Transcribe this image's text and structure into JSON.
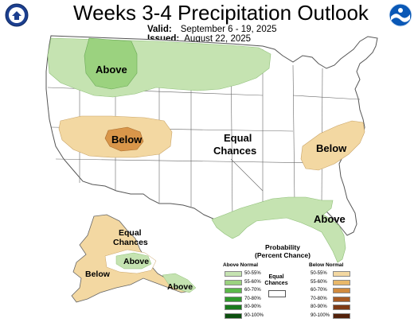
{
  "header": {
    "title": "Weeks 3-4 Precipitation Outlook",
    "valid_label": "Valid:",
    "valid_value": "September 6 - 19, 2025",
    "issued_label": "Issued:",
    "issued_value": "August 22, 2025"
  },
  "map": {
    "labels": {
      "above_northwest": "Above",
      "below_west": "Below",
      "equal_chances_line1": "Equal",
      "equal_chances_line2": "Chances",
      "below_east": "Below",
      "above_gulf": "Above",
      "alaska_equal_line1": "Equal",
      "alaska_equal_line2": "Chances",
      "alaska_above": "Above",
      "alaska_below": "Below",
      "alaska_above_southeast": "Above"
    }
  },
  "legend": {
    "title_line1": "Probability",
    "title_line2": "(Percent Chance)",
    "above_header": "Above Normal",
    "below_header": "Below Normal",
    "equal_line1": "Equal",
    "equal_line2": "Chances",
    "above_bins": [
      {
        "label": "50-55%",
        "color": "#c5e3b1"
      },
      {
        "label": "55-60%",
        "color": "#9bd27f"
      },
      {
        "label": "60-70%",
        "color": "#5bb84a"
      },
      {
        "label": "70-80%",
        "color": "#2f9a2c"
      },
      {
        "label": "80-90%",
        "color": "#197a1c"
      },
      {
        "label": "90-100%",
        "color": "#0c4f0f"
      }
    ],
    "below_bins": [
      {
        "label": "50-55%",
        "color": "#f3d8a2"
      },
      {
        "label": "55-60%",
        "color": "#e8b86a"
      },
      {
        "label": "60-70%",
        "color": "#d18b3f"
      },
      {
        "label": "70-80%",
        "color": "#a85a23"
      },
      {
        "label": "80-90%",
        "color": "#7e3a15"
      },
      {
        "label": "90-100%",
        "color": "#53220b"
      }
    ]
  },
  "colors": {
    "above_light": "#c5e3b1",
    "above_mid": "#9bd27f",
    "below_light": "#f3d8a2",
    "below_mid": "#d9964a"
  }
}
